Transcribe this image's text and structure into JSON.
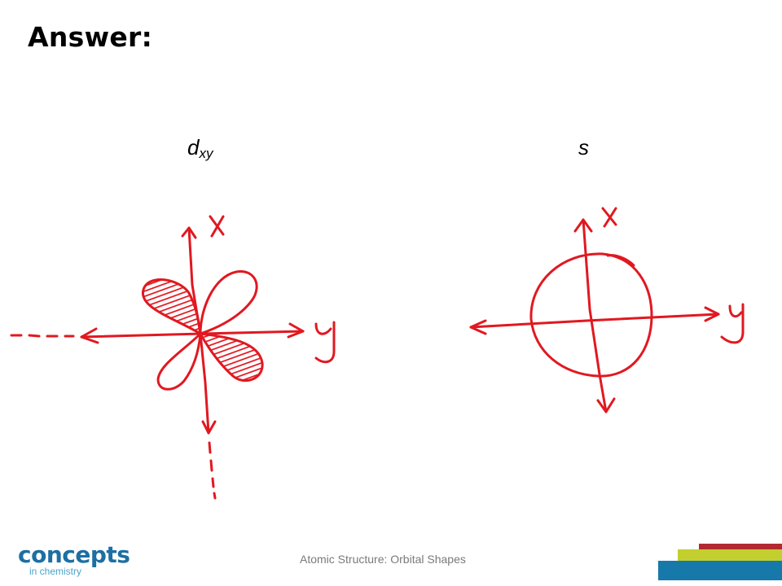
{
  "slide": {
    "title": "Answer:",
    "footer": "Atomic Structure: Orbital Shapes"
  },
  "diagrams": {
    "dxy": {
      "label_main": "d",
      "label_sub": "xy",
      "axis_x": "x",
      "axis_y": "y"
    },
    "s": {
      "label": "s",
      "axis_x": "x",
      "axis_y": "y"
    }
  },
  "logo": {
    "main": "concepts",
    "sub": "in chemistry"
  },
  "colors": {
    "sketch": "#e11820",
    "logo": "#1d6fa3",
    "bar_red": "#b22a30",
    "bar_lime": "#c2cf2e",
    "bar_blue": "#1779a9"
  }
}
